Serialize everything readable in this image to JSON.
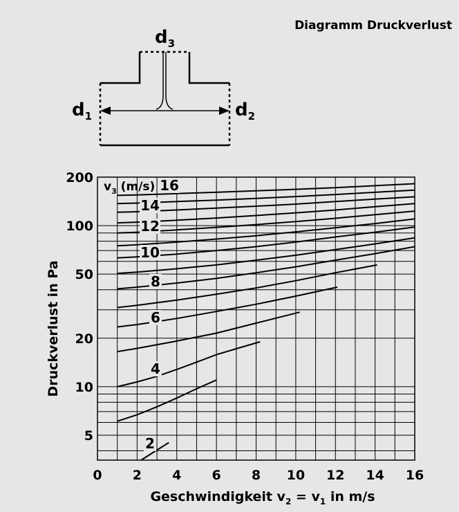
{
  "header": {
    "title": "Diagramm Druckverlust"
  },
  "tee_diagram": {
    "label_d3_base": "d",
    "label_d3_sub": "3",
    "label_d1_base": "d",
    "label_d1_sub": "1",
    "label_d2_base": "d",
    "label_d2_sub": "2"
  },
  "chart_data": {
    "type": "line",
    "title": "",
    "xlabel": {
      "pre": "Geschwindigkeit v",
      "sub1": "2",
      "mid": " = v",
      "sub2": "1",
      "post": " in m/s"
    },
    "ylabel": "Druckverlust in Pa",
    "x_ticks": [
      "0",
      "2",
      "4",
      "6",
      "8",
      "10",
      "12",
      "14",
      "16"
    ],
    "y_ticks": [
      {
        "value": 5,
        "label": "5"
      },
      {
        "value": 10,
        "label": "10"
      },
      {
        "value": 20,
        "label": "20"
      },
      {
        "value": 50,
        "label": "50"
      },
      {
        "value": 100,
        "label": "100"
      },
      {
        "value": 200,
        "label": "200"
      }
    ],
    "xlim": [
      0,
      16
    ],
    "ylim": [
      3.5,
      200
    ],
    "y_scale": "log",
    "grid": true,
    "legend": {
      "pre": "v",
      "sub": "3",
      "post": " (m/s)"
    },
    "series": [
      {
        "name": "2",
        "x": [
          2.2,
          2.8,
          3.6
        ],
        "y": [
          3.5,
          3.9,
          4.5
        ]
      },
      {
        "name": "",
        "x": [
          1,
          2,
          3,
          4,
          5,
          6
        ],
        "y": [
          6.1,
          6.7,
          7.5,
          8.5,
          9.7,
          11
        ]
      },
      {
        "name": "4",
        "x": [
          1,
          2,
          3,
          4,
          5,
          6,
          7,
          8.2
        ],
        "y": [
          10,
          10.7,
          11.6,
          12.8,
          14.2,
          15.8,
          17.2,
          19
        ]
      },
      {
        "name": "",
        "x": [
          1,
          2,
          4,
          6,
          8,
          10.2
        ],
        "y": [
          16.5,
          17.3,
          19.2,
          21.5,
          24.8,
          29
        ]
      },
      {
        "name": "6",
        "x": [
          1,
          2,
          4,
          6,
          8,
          10,
          12.1
        ],
        "y": [
          23.5,
          24.3,
          26.5,
          29.3,
          32.5,
          36.5,
          41.5
        ]
      },
      {
        "name": "",
        "x": [
          1,
          2,
          4,
          6,
          8,
          10,
          12,
          14.1
        ],
        "y": [
          31,
          32,
          34.5,
          37.5,
          41,
          45.5,
          51,
          57
        ]
      },
      {
        "name": "8",
        "x": [
          1,
          2,
          4,
          6,
          8,
          10,
          12,
          14,
          16
        ],
        "y": [
          40.5,
          41.5,
          44,
          47,
          51,
          55.5,
          61,
          67,
          74
        ]
      },
      {
        "name": "",
        "x": [
          1,
          2,
          4,
          6,
          8,
          10,
          12,
          14,
          16
        ],
        "y": [
          50.5,
          51.5,
          54,
          57,
          61,
          65.5,
          71,
          77,
          84
        ]
      },
      {
        "name": "10",
        "x": [
          1,
          2,
          4,
          6,
          8,
          10,
          12,
          14,
          16
        ],
        "y": [
          63,
          64,
          66.5,
          70,
          74,
          79,
          85,
          91,
          98
        ]
      },
      {
        "name": "",
        "x": [
          1,
          2,
          4,
          6,
          8,
          10,
          12,
          14,
          16
        ],
        "y": [
          75,
          76,
          79,
          82.5,
          86.5,
          91.5,
          97,
          103,
          110
        ]
      },
      {
        "name": "12",
        "x": [
          1,
          2,
          4,
          6,
          8,
          10,
          12,
          14,
          16
        ],
        "y": [
          90,
          91,
          94,
          97.5,
          101.5,
          106,
          111,
          117,
          123
        ]
      },
      {
        "name": "",
        "x": [
          1,
          2,
          4,
          6,
          8,
          10,
          12,
          14,
          16
        ],
        "y": [
          104,
          105,
          108,
          111.5,
          115.5,
          120,
          125,
          131,
          137
        ]
      },
      {
        "name": "14",
        "x": [
          1,
          2,
          4,
          6,
          8,
          10,
          12,
          14,
          16
        ],
        "y": [
          121,
          122,
          125,
          128.5,
          132,
          136,
          141,
          146,
          151
        ]
      },
      {
        "name": "",
        "x": [
          1,
          2,
          4,
          6,
          8,
          10,
          12,
          14,
          16
        ],
        "y": [
          137,
          138,
          141,
          144,
          147.5,
          151.5,
          156,
          161,
          166
        ]
      },
      {
        "name": "16",
        "x": [
          1,
          2,
          4,
          6,
          8,
          10,
          12,
          14,
          16
        ],
        "y": [
          154,
          155,
          158,
          161,
          164.5,
          168,
          172,
          177,
          182
        ]
      }
    ]
  }
}
